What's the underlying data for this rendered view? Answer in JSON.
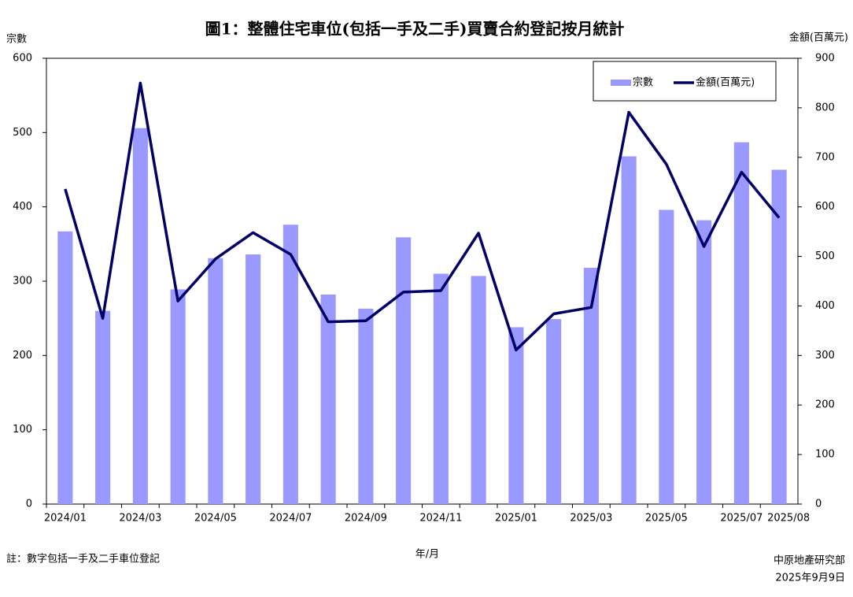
{
  "chart_data": {
    "type": "bar_line",
    "title": "圖1：整體住宅車位(包括一手及二手)買賣合約登記按月統計",
    "y_label": "宗數",
    "y2_label": "金額(百萬元)",
    "x_label": "年/月",
    "note": "註：數字包括一手及二手車位登記",
    "source": "中原地產研究部",
    "date": "2025年9月9日",
    "categories": [
      "2024/01",
      null,
      "2024/03",
      null,
      "2024/05",
      null,
      "2024/07",
      null,
      "2024/09",
      null,
      "2024/11",
      null,
      "2025/01",
      null,
      "2025/03",
      null,
      "2025/05",
      null,
      "2025/07",
      "2025/08"
    ],
    "series": [
      {
        "name": "宗數",
        "type": "bar",
        "color": "#9999ff",
        "values": [
          367,
          260,
          506,
          289,
          331,
          336,
          376,
          282,
          263,
          359,
          310,
          307,
          238,
          249,
          318,
          468,
          396,
          382,
          487,
          450
        ]
      },
      {
        "name": "金額(百萬元)",
        "type": "line",
        "axis": "y2",
        "color": "#000066",
        "values": [
          636,
          375,
          850,
          410,
          495,
          548,
          504,
          368,
          370,
          428,
          431,
          547,
          311,
          384,
          397,
          791,
          686,
          520,
          670,
          578
        ]
      }
    ],
    "ylim": [
      0,
      600
    ],
    "yticks": [
      0,
      100,
      200,
      300,
      400,
      500,
      600
    ],
    "y2lim": [
      0,
      900
    ],
    "y2ticks": [
      0,
      100,
      200,
      300,
      400,
      500,
      600,
      700,
      800,
      900
    ],
    "grid": false,
    "legend": "top-right"
  }
}
